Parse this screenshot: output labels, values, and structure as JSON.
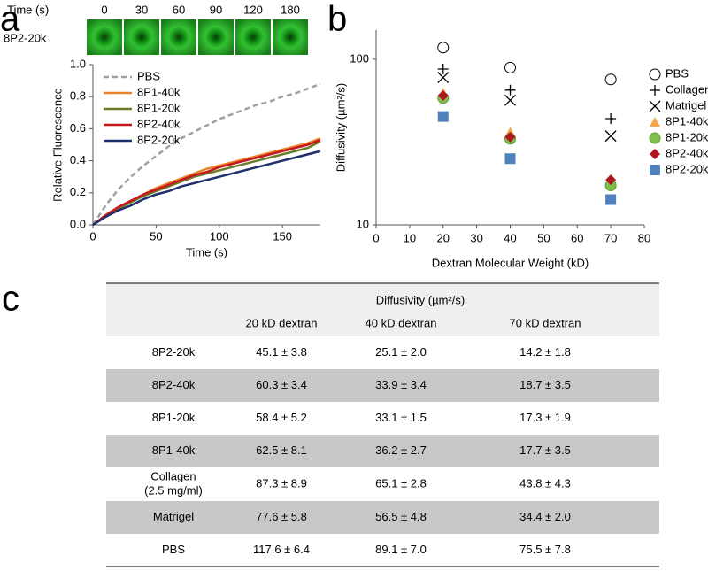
{
  "panel_labels": [
    "a",
    "b",
    "c"
  ],
  "time_strip": {
    "header": "Time (s)",
    "times": [
      "0",
      "30",
      "60",
      "90",
      "120",
      "180"
    ],
    "row_label": "8P2-20k"
  },
  "chart_data": [
    {
      "type": "line",
      "xlabel": "Time (s)",
      "ylabel": "Relative Fluorescence",
      "x": [
        0,
        10,
        20,
        30,
        40,
        50,
        60,
        70,
        80,
        90,
        100,
        110,
        120,
        130,
        140,
        150,
        160,
        170,
        180
      ],
      "xlim": [
        0,
        180
      ],
      "xticks": [
        0,
        50,
        100,
        150
      ],
      "ylim": [
        0,
        1
      ],
      "yticks": [
        {
          "value": 0,
          "label": "0.0"
        },
        {
          "value": 0.2,
          "label": "0.2"
        },
        {
          "value": 0.4,
          "label": "0.4"
        },
        {
          "value": 0.6,
          "label": "0.6"
        },
        {
          "value": 0.8,
          "label": "0.8"
        },
        {
          "value": 1,
          "label": "1.0"
        }
      ],
      "legend": "top-left",
      "series": [
        {
          "name": "PBS",
          "color": "#a0a0a0",
          "dash": true,
          "values": [
            0,
            0.12,
            0.22,
            0.3,
            0.37,
            0.43,
            0.49,
            0.54,
            0.58,
            0.62,
            0.66,
            0.69,
            0.72,
            0.75,
            0.77,
            0.8,
            0.82,
            0.85,
            0.88
          ]
        },
        {
          "name": "8P1-40k",
          "color": "#e8822a",
          "values": [
            0,
            0.06,
            0.11,
            0.15,
            0.19,
            0.23,
            0.26,
            0.29,
            0.32,
            0.35,
            0.37,
            0.39,
            0.41,
            0.43,
            0.45,
            0.47,
            0.49,
            0.51,
            0.54
          ]
        },
        {
          "name": "8P1-20k",
          "color": "#6b7d2a",
          "values": [
            0,
            0.05,
            0.1,
            0.14,
            0.18,
            0.21,
            0.24,
            0.27,
            0.3,
            0.32,
            0.34,
            0.36,
            0.38,
            0.4,
            0.42,
            0.44,
            0.46,
            0.48,
            0.52
          ]
        },
        {
          "name": "8P2-40k",
          "color": "#c8161d",
          "values": [
            0,
            0.06,
            0.11,
            0.15,
            0.19,
            0.22,
            0.25,
            0.28,
            0.31,
            0.33,
            0.36,
            0.38,
            0.4,
            0.42,
            0.44,
            0.46,
            0.48,
            0.5,
            0.53
          ]
        },
        {
          "name": "8P2-20k",
          "color": "#1f2f6b",
          "values": [
            0,
            0.05,
            0.09,
            0.12,
            0.16,
            0.19,
            0.21,
            0.24,
            0.26,
            0.28,
            0.3,
            0.32,
            0.34,
            0.36,
            0.38,
            0.4,
            0.42,
            0.44,
            0.46
          ]
        }
      ]
    },
    {
      "type": "scatter",
      "xlabel": "Dextran Molecular Weight (kD)",
      "ylabel": "Diffusivity (µm²/s)",
      "x": [
        20,
        40,
        70
      ],
      "xlim": [
        0,
        80
      ],
      "xticks": [
        0,
        10,
        20,
        30,
        40,
        50,
        60,
        70,
        80
      ],
      "ylim": [
        10,
        150
      ],
      "yticks": [
        10,
        100
      ],
      "log_y": true,
      "legend": "right",
      "series": [
        {
          "name": "PBS",
          "color": "#000000",
          "marker": "circle-open",
          "values": [
            117.6,
            89.1,
            75.5
          ]
        },
        {
          "name": "Collagen",
          "color": "#000000",
          "marker": "plus",
          "values": [
            87.3,
            65.1,
            43.8
          ]
        },
        {
          "name": "Matrigel",
          "color": "#000000",
          "marker": "cross",
          "values": [
            77.6,
            56.5,
            34.4
          ]
        },
        {
          "name": "8P1-40k",
          "color": "#f5a54a",
          "marker": "triangle",
          "values": [
            62.5,
            36.2,
            17.7
          ]
        },
        {
          "name": "8P1-20k",
          "color": "#7fc04a",
          "marker": "circle",
          "values": [
            58.4,
            33.1,
            17.3
          ]
        },
        {
          "name": "8P2-40k",
          "color": "#b0171f",
          "marker": "diamond",
          "values": [
            60.3,
            33.9,
            18.7
          ]
        },
        {
          "name": "8P2-20k",
          "color": "#4f81bd",
          "marker": "square",
          "values": [
            45.1,
            25.1,
            14.2
          ]
        }
      ]
    }
  ],
  "table": {
    "title": "Diffusivity (µm²/s)",
    "columns": [
      "20 kD dextran",
      "40 kD dextran",
      "70 kD dextran"
    ],
    "rows": [
      {
        "label": "8P2-20k",
        "shaded": false,
        "cells": [
          "45.1 ± 3.8",
          "25.1 ± 2.0",
          "14.2 ± 1.8"
        ]
      },
      {
        "label": "8P2-40k",
        "shaded": true,
        "cells": [
          "60.3 ± 3.4",
          "33.9 ± 3.4",
          "18.7 ± 3.5"
        ]
      },
      {
        "label": "8P1-20k",
        "shaded": false,
        "cells": [
          "58.4 ± 5.2",
          "33.1 ± 1.5",
          "17.3 ± 1.9"
        ]
      },
      {
        "label": "8P1-40k",
        "shaded": true,
        "cells": [
          "62.5 ± 8.1",
          "36.2 ± 2.7",
          "17.7 ± 3.5"
        ]
      },
      {
        "label": [
          "Collagen",
          "(2.5 mg/ml)"
        ],
        "shaded": false,
        "cells": [
          "87.3 ± 8.9",
          "65.1 ± 2.8",
          "43.8 ± 4.3"
        ]
      },
      {
        "label": "Matrigel",
        "shaded": true,
        "cells": [
          "77.6 ± 5.8",
          "56.5 ± 4.8",
          "34.4 ± 2.0"
        ]
      },
      {
        "label": "PBS",
        "shaded": false,
        "cells": [
          "117.6 ± 6.4",
          "89.1 ± 7.0",
          "75.5 ± 7.8"
        ]
      }
    ]
  }
}
